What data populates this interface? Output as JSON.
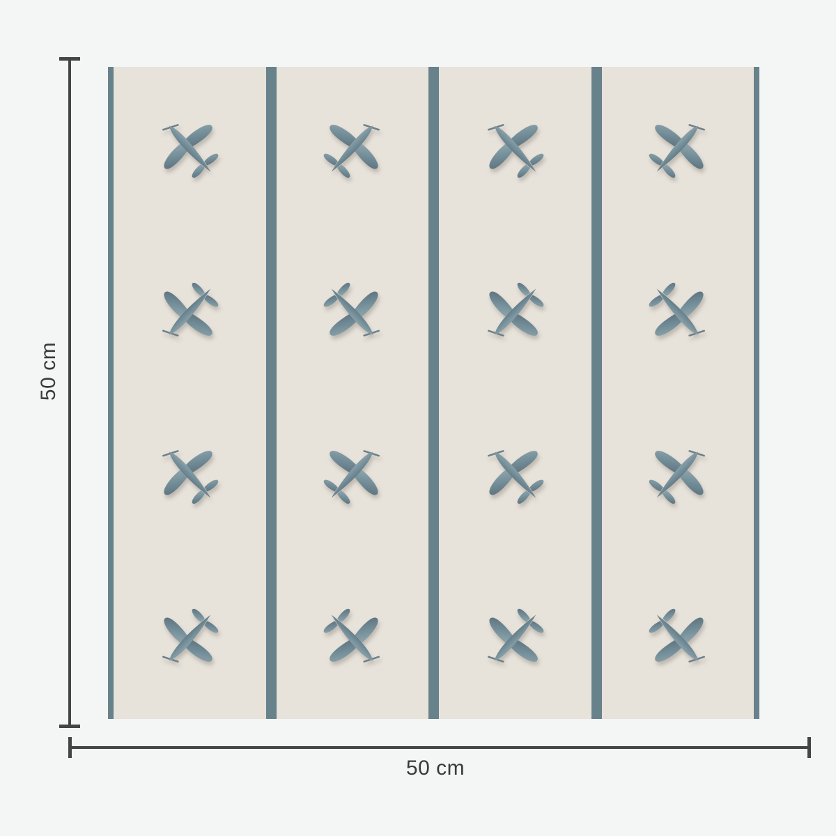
{
  "page": {
    "background_color": "#f4f5f5"
  },
  "diagram": {
    "title": "wallpaper swatch dimension diagram",
    "height_label": "50 cm",
    "width_label": "50 cm"
  },
  "swatch": {
    "motif": "vintage-airplane",
    "rows": 4,
    "columns": 4,
    "background_color": "#e7e2da",
    "stripe_color": "#68828c",
    "plane_light_color": "#8ea3ab",
    "plane_mid_color": "#75909b",
    "plane_dark_color": "#5e747f",
    "orientation_grid": [
      [
        "nw",
        "ne",
        "nw",
        "ne"
      ],
      [
        "sw",
        "se",
        "sw",
        "se"
      ],
      [
        "nw",
        "ne",
        "nw",
        "ne"
      ],
      [
        "sw",
        "se",
        "sw",
        "se"
      ]
    ]
  },
  "annotation": {
    "line_color": "#454545",
    "text_color": "#3a3a3a"
  }
}
